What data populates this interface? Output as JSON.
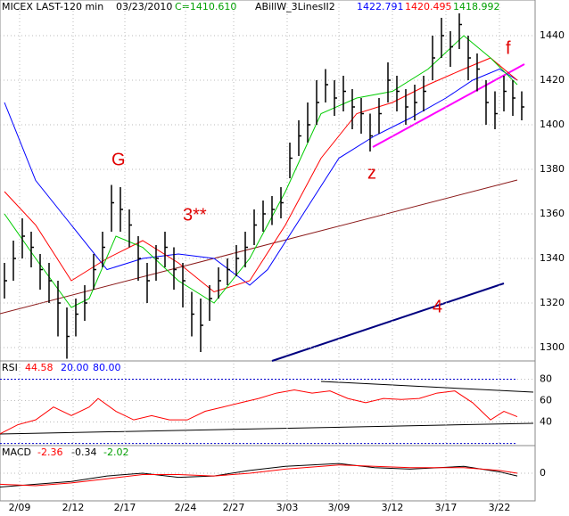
{
  "chart_data": {
    "type": "ohlc",
    "header": {
      "symbol": "MICEX LAST-120 min",
      "date": "03/23/2010",
      "close": "C=1410.610",
      "study": "ABillW_3LinesII2",
      "ma1": "1422.791",
      "ma2": "1420.495",
      "ma3": "1418.992"
    },
    "annotations": [
      "G",
      "3**",
      "z",
      "4",
      "f"
    ],
    "xlim": [
      -0.5,
      59.5
    ],
    "xticks": [
      {
        "value": 1.7,
        "label": "2/09"
      },
      {
        "value": 7.7,
        "label": "2/12"
      },
      {
        "value": 13.5,
        "label": "2/17"
      },
      {
        "value": 20.3,
        "label": "2/24"
      },
      {
        "value": 25.7,
        "label": "2/27"
      },
      {
        "value": 31.7,
        "label": "3/03"
      },
      {
        "value": 37.5,
        "label": "3/09"
      },
      {
        "value": 43.5,
        "label": "3/12"
      },
      {
        "value": 49.5,
        "label": "3/17"
      },
      {
        "value": 55.5,
        "label": "3/22"
      }
    ],
    "ylim": [
      1294,
      1456
    ],
    "yticks": [
      1300,
      1320,
      1340,
      1360,
      1380,
      1400,
      1420,
      1440
    ],
    "grid": true,
    "bar_color": "#000000",
    "high": [
      1338,
      1348,
      1358,
      1352,
      1342,
      1338,
      1330,
      1318,
      1322,
      1328,
      1342,
      1352,
      1373,
      1372,
      1362,
      1350,
      1338,
      1346,
      1352,
      1345,
      1338,
      1325,
      1322,
      1328,
      1336,
      1340,
      1346,
      1352,
      1362,
      1366,
      1368,
      1372,
      1392,
      1402,
      1410,
      1420,
      1425,
      1420,
      1422,
      1416,
      1412,
      1405,
      1412,
      1428,
      1422,
      1416,
      1418,
      1422,
      1440,
      1448,
      1442,
      1450,
      1440,
      1432,
      1420,
      1415,
      1422,
      1420,
      1415
    ],
    "low": [
      1322,
      1330,
      1340,
      1336,
      1326,
      1320,
      1305,
      1295,
      1305,
      1312,
      1326,
      1336,
      1352,
      1352,
      1345,
      1330,
      1320,
      1330,
      1336,
      1326,
      1318,
      1305,
      1298,
      1312,
      1322,
      1328,
      1332,
      1336,
      1346,
      1352,
      1355,
      1358,
      1376,
      1386,
      1392,
      1400,
      1410,
      1404,
      1406,
      1398,
      1396,
      1388,
      1396,
      1410,
      1406,
      1400,
      1402,
      1406,
      1420,
      1430,
      1426,
      1434,
      1420,
      1415,
      1400,
      1398,
      1406,
      1404,
      1402
    ],
    "close": [
      1330,
      1340,
      1350,
      1345,
      1335,
      1330,
      1320,
      1305,
      1315,
      1320,
      1335,
      1345,
      1365,
      1362,
      1355,
      1340,
      1330,
      1340,
      1345,
      1335,
      1330,
      1315,
      1310,
      1322,
      1330,
      1335,
      1340,
      1345,
      1355,
      1360,
      1362,
      1365,
      1385,
      1395,
      1400,
      1410,
      1418,
      1412,
      1415,
      1408,
      1405,
      1395,
      1405,
      1420,
      1415,
      1408,
      1410,
      1415,
      1430,
      1440,
      1435,
      1445,
      1430,
      1425,
      1410,
      1405,
      1415,
      1412,
      1408
    ],
    "series": [
      {
        "color": "#0000ff",
        "x": [
          0,
          3.5,
          7.5,
          11.5,
          15.5,
          19.5,
          23.5,
          27.5,
          29.5,
          33.5,
          37.5,
          41.5,
          45.5,
          49.5,
          52.5,
          55.5,
          57.5
        ],
        "values": [
          1410,
          1375,
          1355,
          1335,
          1340,
          1342,
          1340,
          1328,
          1335,
          1360,
          1385,
          1395,
          1403,
          1412,
          1420,
          1425,
          1420
        ]
      },
      {
        "color": "#ff0000",
        "x": [
          0,
          3.5,
          7.5,
          11.5,
          15.5,
          19.5,
          23.5,
          27.5,
          31.5,
          35.5,
          39.5,
          43.5,
          47.5,
          51.5,
          54.5,
          57.5
        ],
        "values": [
          1370,
          1355,
          1330,
          1340,
          1348,
          1338,
          1325,
          1330,
          1355,
          1385,
          1405,
          1410,
          1418,
          1425,
          1430,
          1420
        ]
      },
      {
        "color": "#00cc00",
        "x": [
          0,
          3.5,
          7.5,
          9.5,
          12.5,
          15.5,
          19.5,
          23.5,
          27.5,
          31.5,
          35.5,
          39.5,
          43.5,
          47.5,
          51.5,
          54.5,
          57.5
        ],
        "values": [
          1360,
          1340,
          1318,
          1322,
          1350,
          1345,
          1330,
          1320,
          1340,
          1370,
          1405,
          1412,
          1415,
          1425,
          1440,
          1430,
          1418
        ]
      }
    ],
    "rsi": {
      "label": "RSI",
      "value": "44.58",
      "low": "20.00",
      "high": "80.00",
      "color": "#ff0000",
      "ylim": [
        18,
        97
      ],
      "yticks": [
        40,
        60,
        80
      ],
      "levels": [
        20,
        80
      ],
      "x": [
        -0.5,
        1.5,
        3.5,
        5.5,
        7.5,
        9.5,
        10.5,
        12.5,
        14.5,
        16.5,
        18.5,
        20.5,
        22.5,
        24.5,
        26.5,
        28.5,
        30.5,
        32.5,
        34.5,
        36.5,
        38.5,
        40.5,
        42.5,
        44.5,
        46.5,
        48.5,
        50.5,
        52.5,
        54.5,
        56,
        57.5
      ],
      "values": [
        29,
        37.5,
        42,
        54,
        46,
        54,
        62,
        50,
        42,
        46,
        42,
        42,
        50,
        54,
        58,
        62,
        67,
        70,
        67,
        69,
        62,
        58,
        62,
        61,
        62,
        67,
        69,
        58,
        42,
        50,
        45
      ]
    },
    "macd": {
      "label": "MACD",
      "value": "-2.36",
      "signal": "-0.34",
      "hist": "-2.02",
      "ylim": [
        -20,
        20
      ],
      "yticks": [
        0
      ],
      "x": [
        -0.5,
        3.5,
        7.5,
        11.5,
        15.5,
        19.5,
        23.5,
        27.5,
        31.5,
        37.5,
        41.5,
        45.5,
        51.5,
        55.5,
        57.5
      ],
      "values": [
        -10,
        -8,
        -6,
        -2,
        0,
        -3,
        -2,
        2,
        5,
        7,
        4,
        3,
        5,
        1,
        -2
      ],
      "signal_values": [
        -8,
        -9,
        -7,
        -4,
        -1,
        -1,
        -2,
        0,
        3,
        6,
        5,
        4,
        4,
        2,
        0
      ]
    }
  }
}
